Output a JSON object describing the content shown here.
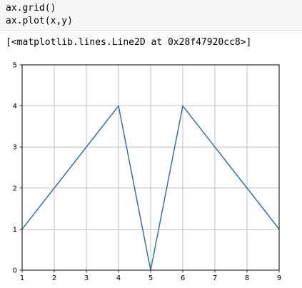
{
  "code_cell": {
    "lines": [
      "ax.grid()",
      "ax.plot(x,y)"
    ]
  },
  "output": {
    "text": "[<matplotlib.lines.Line2D at 0x28f47920cc8>]"
  },
  "chart_data": {
    "type": "line",
    "x": [
      1,
      4,
      5,
      6,
      9
    ],
    "series": [
      {
        "values": [
          1,
          4,
          0,
          4,
          1
        ],
        "color": "#3a6f9b"
      }
    ],
    "xlim": [
      1,
      9
    ],
    "ylim": [
      0,
      5
    ],
    "xticks": [
      1,
      2,
      3,
      4,
      5,
      6,
      7,
      8,
      9
    ],
    "yticks": [
      0,
      1,
      2,
      3,
      4,
      5
    ],
    "grid": true,
    "title": "",
    "xlabel": "",
    "ylabel": ""
  }
}
